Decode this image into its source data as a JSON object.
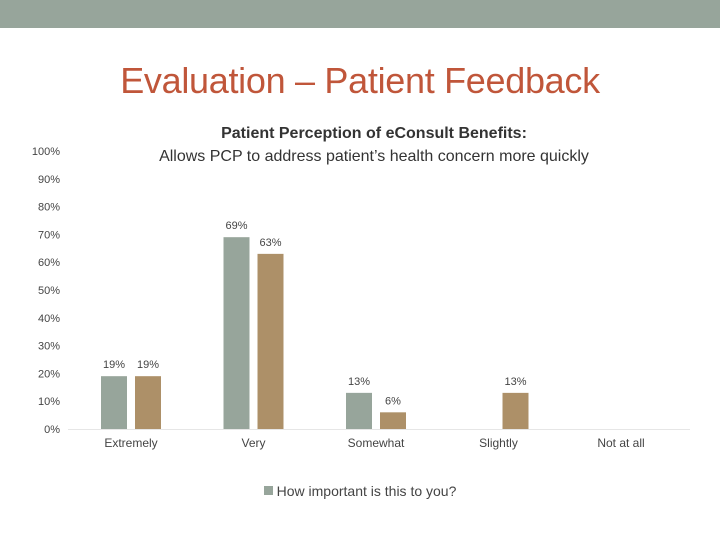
{
  "slide": {
    "title": "Evaluation – Patient Feedback"
  },
  "colors": {
    "band": "#97a59b",
    "title": "#c0563a",
    "series_a": "#97a59b",
    "series_b": "#ad9068"
  },
  "chart_data": {
    "type": "bar",
    "title_line1": "Patient Perception of eConsult Benefits:",
    "title_line2": "Allows PCP to address patient’s health concern more quickly",
    "categories": [
      "Extremely",
      "Very",
      "Somewhat",
      "Slightly",
      "Not at all"
    ],
    "series": [
      {
        "name": "How important is this to you?",
        "values": [
          19,
          69,
          13,
          null,
          null
        ],
        "labels": [
          "19%",
          "69%",
          "13%",
          "",
          ""
        ]
      },
      {
        "name": "",
        "values": [
          19,
          63,
          6,
          13,
          null
        ],
        "labels": [
          "19%",
          "63%",
          "6%",
          "13%",
          ""
        ]
      }
    ],
    "y_ticks": [
      "0%",
      "10%",
      "20%",
      "30%",
      "40%",
      "50%",
      "60%",
      "70%",
      "80%",
      "90%",
      "100%"
    ],
    "ylim": [
      0,
      100
    ],
    "legend": "bottom-center"
  }
}
